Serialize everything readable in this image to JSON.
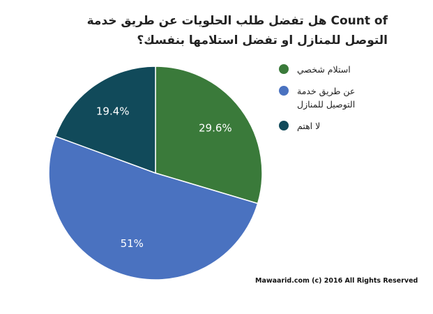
{
  "chart_data": {
    "type": "pie",
    "title": "Count of هل تفضل طلب الحلويات عن طريق خدمة التوصل للمنازل او تفضل استلامها بنفسك؟",
    "categories": [
      "استلام شخصي",
      "عن طريق خدمة التوصيل للمنازل",
      "لا اهتم"
    ],
    "values": [
      29.6,
      51,
      19.4
    ],
    "value_labels": [
      "29.6%",
      "51%",
      "19.4%"
    ],
    "colors": [
      "#3a7a3a",
      "#4a72c0",
      "#114a5a"
    ],
    "legend": "right",
    "source": "Mawaarid.com (c) 2016 All Rights Reserved"
  }
}
